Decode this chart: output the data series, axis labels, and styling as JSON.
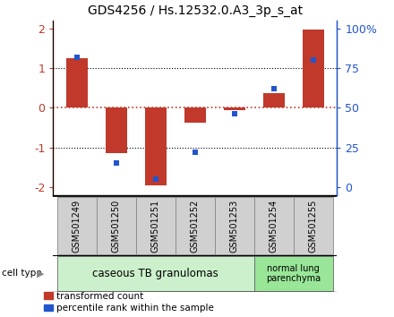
{
  "title": "GDS4256 / Hs.12532.0.A3_3p_s_at",
  "samples": [
    "GSM501249",
    "GSM501250",
    "GSM501251",
    "GSM501252",
    "GSM501253",
    "GSM501254",
    "GSM501255"
  ],
  "transformed_count": [
    1.25,
    -1.15,
    -1.95,
    -0.38,
    -0.05,
    0.38,
    1.97
  ],
  "percentile_rank": [
    82,
    15,
    5,
    22,
    46,
    62,
    80
  ],
  "ylim": [
    -2.2,
    2.2
  ],
  "yticks": [
    -2,
    -1,
    0,
    1,
    2
  ],
  "right_tick_labels": [
    "0",
    "25",
    "50",
    "75",
    "100%"
  ],
  "red_color": "#c0392b",
  "blue_color": "#2255cc",
  "bar_width": 0.55,
  "group1_label": "caseous TB granulomas",
  "group2_label": "normal lung\nparenchyma",
  "group1_color": "#ccf0cc",
  "group2_color": "#99e699",
  "group1_count": 5,
  "group2_count": 2,
  "cell_type_label": "cell type",
  "legend_red": "transformed count",
  "legend_blue": "percentile rank within the sample",
  "title_fontsize": 10,
  "axis_fontsize": 9,
  "sample_fontsize": 7,
  "group_fontsize": 8.5,
  "legend_fontsize": 7.5
}
